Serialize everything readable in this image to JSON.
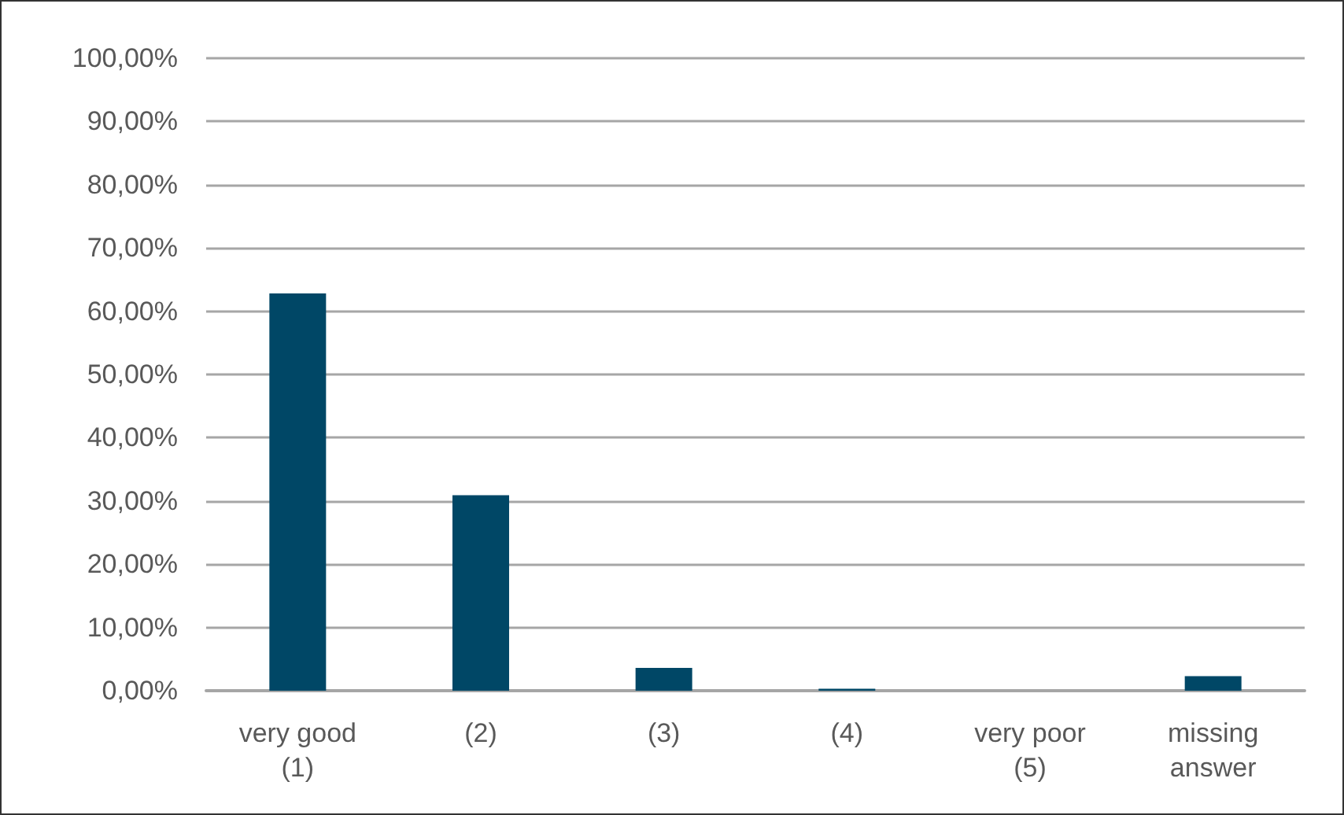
{
  "chart_data": {
    "type": "bar",
    "categories": [
      "very good\n(1)",
      "(2)",
      "(3)",
      "(4)",
      "very poor\n(5)",
      "missing\nanswer"
    ],
    "values": [
      62.8,
      30.9,
      3.6,
      0.3,
      0,
      2.3
    ],
    "color": "#004766",
    "ylim": [
      0,
      100
    ],
    "yticks": [
      {
        "value": 0,
        "label": "0,00%"
      },
      {
        "value": 10,
        "label": "10,00%"
      },
      {
        "value": 20,
        "label": "20,00%"
      },
      {
        "value": 30,
        "label": "30,00%"
      },
      {
        "value": 40,
        "label": "40,00%"
      },
      {
        "value": 50,
        "label": "50,00%"
      },
      {
        "value": 60,
        "label": "60,00%"
      },
      {
        "value": 70,
        "label": "70,00%"
      },
      {
        "value": 80,
        "label": "80,00%"
      },
      {
        "value": 90,
        "label": "90,00%"
      },
      {
        "value": 100,
        "label": "100,00%"
      }
    ],
    "grid": "y"
  }
}
